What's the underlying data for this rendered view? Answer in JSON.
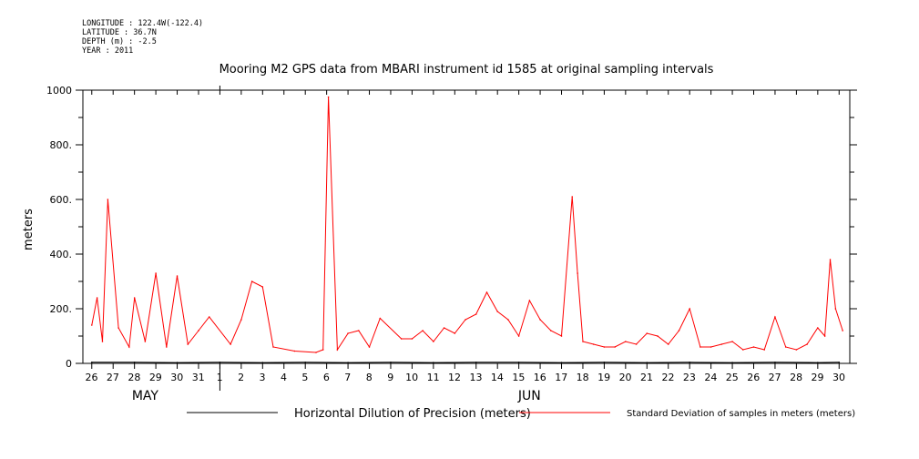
{
  "header": {
    "longitude": "LONGITUDE : 122.4W(-122.4)",
    "latitude": "LATITUDE : 36.7N",
    "depth": "DEPTH (m) : -2.5",
    "year": "YEAR : 2011"
  },
  "chart_data": {
    "type": "line",
    "title": "Mooring M2 GPS data from MBARI instrument id 1585 at original sampling intervals",
    "ylabel": "meters",
    "ylim": [
      0,
      1000
    ],
    "yticks": [
      0,
      200,
      400,
      600,
      800,
      1000
    ],
    "ytick_labels": [
      "0",
      "200.",
      "400.",
      "600.",
      "800.",
      "1000"
    ],
    "xlim": [
      "2011-05-25T14:00",
      "2011-06-30T12:00"
    ],
    "xtick_labels": [
      "26",
      "27",
      "28",
      "29",
      "30",
      "31",
      "1",
      "2",
      "3",
      "4",
      "5",
      "6",
      "7",
      "8",
      "9",
      "10",
      "11",
      "12",
      "13",
      "14",
      "15",
      "16",
      "17",
      "18",
      "19",
      "20",
      "21",
      "22",
      "23",
      "24",
      "25",
      "26",
      "27",
      "28",
      "29",
      "30"
    ],
    "month_labels": [
      "MAY",
      "JUN"
    ],
    "legend": "bottom",
    "series": [
      {
        "name": "Horizontal Dilution of Precision (meters)",
        "color": "#000000",
        "x": [
          "2011-05-26",
          "2011-05-28",
          "2011-05-30",
          "2011-06-01",
          "2011-06-03",
          "2011-06-05",
          "2011-06-07",
          "2011-06-09",
          "2011-06-11",
          "2011-06-13",
          "2011-06-15",
          "2011-06-17",
          "2011-06-19",
          "2011-06-21",
          "2011-06-23",
          "2011-06-25",
          "2011-06-27",
          "2011-06-29",
          "2011-06-30"
        ],
        "y": [
          4,
          4,
          3,
          4,
          3,
          4,
          3,
          4,
          3,
          4,
          4,
          3,
          4,
          3,
          4,
          3,
          4,
          3,
          4
        ]
      },
      {
        "name": "Standard Deviation of samples in meters (meters)",
        "color": "#ff0000",
        "x": [
          "2011-05-26T00:00",
          "2011-05-26T06:00",
          "2011-05-26T12:00",
          "2011-05-26T18:00",
          "2011-05-27T06:00",
          "2011-05-27T18:00",
          "2011-05-28T00:00",
          "2011-05-28T12:00",
          "2011-05-29T00:00",
          "2011-05-29T12:00",
          "2011-05-30T00:00",
          "2011-05-30T12:00",
          "2011-05-31T00:00",
          "2011-05-31T12:00",
          "2011-06-01T12:00",
          "2011-06-02T00:00",
          "2011-06-02T12:00",
          "2011-06-03T00:00",
          "2011-06-03T12:00",
          "2011-06-04T12:00",
          "2011-06-05T12:00",
          "2011-06-05T20:00",
          "2011-06-06T02:00",
          "2011-06-06T12:00",
          "2011-06-07T00:00",
          "2011-06-07T12:00",
          "2011-06-08T00:00",
          "2011-06-08T12:00",
          "2011-06-09T12:00",
          "2011-06-10T00:00",
          "2011-06-10T12:00",
          "2011-06-11T00:00",
          "2011-06-11T12:00",
          "2011-06-12T00:00",
          "2011-06-12T12:00",
          "2011-06-13T00:00",
          "2011-06-13T12:00",
          "2011-06-14T00:00",
          "2011-06-14T12:00",
          "2011-06-15T00:00",
          "2011-06-15T12:00",
          "2011-06-16T00:00",
          "2011-06-16T12:00",
          "2011-06-17T00:00",
          "2011-06-17T12:00",
          "2011-06-17T18:00",
          "2011-06-18T00:00",
          "2011-06-18T12:00",
          "2011-06-19T00:00",
          "2011-06-19T12:00",
          "2011-06-20T00:00",
          "2011-06-20T12:00",
          "2011-06-21T00:00",
          "2011-06-21T12:00",
          "2011-06-22T00:00",
          "2011-06-22T12:00",
          "2011-06-23T00:00",
          "2011-06-23T12:00",
          "2011-06-24T00:00",
          "2011-06-24T12:00",
          "2011-06-25T00:00",
          "2011-06-25T12:00",
          "2011-06-26T00:00",
          "2011-06-26T12:00",
          "2011-06-27T00:00",
          "2011-06-27T12:00",
          "2011-06-28T00:00",
          "2011-06-28T12:00",
          "2011-06-29T00:00",
          "2011-06-29T08:00",
          "2011-06-29T14:00",
          "2011-06-29T20:00",
          "2011-06-30T04:00"
        ],
        "y": [
          140,
          240,
          80,
          600,
          130,
          60,
          240,
          80,
          330,
          60,
          320,
          70,
          120,
          170,
          70,
          160,
          300,
          280,
          60,
          45,
          40,
          50,
          975,
          50,
          110,
          120,
          60,
          165,
          90,
          90,
          120,
          80,
          130,
          110,
          160,
          180,
          260,
          190,
          160,
          100,
          230,
          160,
          120,
          100,
          610,
          330,
          80,
          70,
          60,
          60,
          80,
          70,
          110,
          100,
          70,
          120,
          200,
          60,
          60,
          70,
          80,
          50,
          60,
          50,
          170,
          60,
          50,
          70,
          130,
          100,
          380,
          200,
          120
        ]
      }
    ]
  }
}
